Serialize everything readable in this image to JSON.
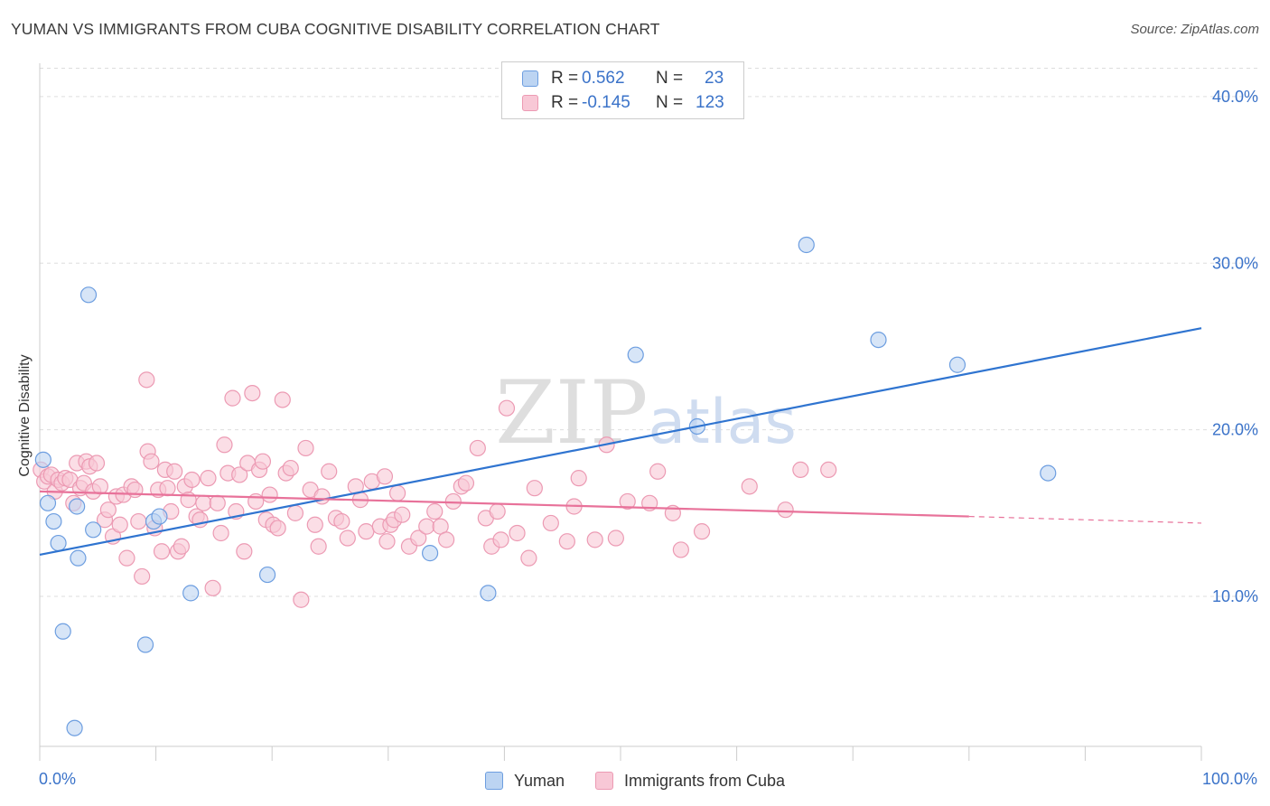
{
  "title": "YUMAN VS IMMIGRANTS FROM CUBA COGNITIVE DISABILITY CORRELATION CHART",
  "source": "Source: ZipAtlas.com",
  "watermark": "ZIPatlas",
  "colors": {
    "blue_fill": "#bcd4f2",
    "blue_stroke": "#6d9ee0",
    "blue_line": "#2f74d0",
    "pink_fill": "#f8c8d6",
    "pink_stroke": "#ec9ab3",
    "pink_line": "#e8729a",
    "axis_text": "#3b73c9",
    "grid": "#dddddd"
  },
  "stats": {
    "rows": [
      {
        "r_label": "R =",
        "r_value": "0.562",
        "n_label": "N =",
        "n_value": "23"
      },
      {
        "r_label": "R =",
        "r_value": "-0.145",
        "n_label": "N =",
        "n_value": "123"
      }
    ]
  },
  "legend": {
    "items": [
      "Yuman",
      "Immigrants from Cuba"
    ]
  },
  "x_axis": {
    "min_label": "0.0%",
    "max_label": "100.0%"
  },
  "chart_data": {
    "type": "scatter",
    "title": "YUMAN VS IMMIGRANTS FROM CUBA COGNITIVE DISABILITY CORRELATION CHART",
    "xlabel": "",
    "ylabel": "Cognitive Disability",
    "xlim": [
      0,
      100
    ],
    "ylim": [
      1,
      42
    ],
    "y_ticks": [
      10,
      20,
      30,
      40
    ],
    "y_tick_labels": [
      "10.0%",
      "20.0%",
      "30.0%",
      "40.0%"
    ],
    "grid": true,
    "legend_position": "bottom-center",
    "series": [
      {
        "name": "Yuman",
        "color": "blue",
        "points": [
          [
            0.3,
            18.2
          ],
          [
            0.7,
            15.6
          ],
          [
            1.2,
            14.5
          ],
          [
            1.6,
            13.2
          ],
          [
            2.0,
            7.9
          ],
          [
            3.0,
            2.1
          ],
          [
            3.2,
            15.4
          ],
          [
            3.3,
            12.3
          ],
          [
            4.2,
            28.1
          ],
          [
            4.6,
            14.0
          ],
          [
            9.1,
            7.1
          ],
          [
            9.8,
            14.5
          ],
          [
            10.3,
            14.8
          ],
          [
            13.0,
            10.2
          ],
          [
            19.6,
            11.3
          ],
          [
            33.6,
            12.6
          ],
          [
            38.6,
            10.2
          ],
          [
            51.3,
            24.5
          ],
          [
            56.6,
            20.2
          ],
          [
            66.0,
            31.1
          ],
          [
            72.2,
            25.4
          ],
          [
            79.0,
            23.9
          ],
          [
            86.8,
            17.4
          ]
        ],
        "trend": {
          "x": [
            0,
            100
          ],
          "y": [
            12.5,
            26.1
          ]
        }
      },
      {
        "name": "Immigrants from Cuba",
        "color": "pink",
        "points": [
          [
            0.1,
            17.6
          ],
          [
            0.4,
            16.9
          ],
          [
            0.7,
            17.2
          ],
          [
            1.0,
            17.3
          ],
          [
            1.3,
            16.3
          ],
          [
            1.6,
            17.0
          ],
          [
            1.9,
            16.8
          ],
          [
            2.2,
            17.1
          ],
          [
            2.6,
            17.0
          ],
          [
            2.9,
            15.6
          ],
          [
            3.2,
            18.0
          ],
          [
            3.5,
            16.5
          ],
          [
            3.8,
            16.8
          ],
          [
            4.0,
            18.1
          ],
          [
            4.3,
            17.8
          ],
          [
            4.6,
            16.3
          ],
          [
            4.9,
            18.0
          ],
          [
            5.2,
            16.6
          ],
          [
            5.6,
            14.6
          ],
          [
            5.9,
            15.2
          ],
          [
            6.3,
            13.6
          ],
          [
            6.6,
            16.0
          ],
          [
            6.9,
            14.3
          ],
          [
            7.2,
            16.1
          ],
          [
            7.5,
            12.3
          ],
          [
            7.9,
            16.6
          ],
          [
            8.2,
            16.4
          ],
          [
            8.5,
            14.5
          ],
          [
            8.8,
            11.2
          ],
          [
            9.2,
            23.0
          ],
          [
            9.3,
            18.7
          ],
          [
            9.6,
            18.1
          ],
          [
            9.9,
            14.1
          ],
          [
            10.2,
            16.4
          ],
          [
            10.5,
            12.7
          ],
          [
            10.8,
            17.6
          ],
          [
            11.0,
            16.5
          ],
          [
            11.3,
            15.1
          ],
          [
            11.6,
            17.5
          ],
          [
            11.9,
            12.7
          ],
          [
            12.2,
            13.0
          ],
          [
            12.5,
            16.6
          ],
          [
            12.8,
            15.8
          ],
          [
            13.1,
            17.0
          ],
          [
            13.5,
            14.8
          ],
          [
            13.8,
            14.6
          ],
          [
            14.1,
            15.6
          ],
          [
            14.5,
            17.1
          ],
          [
            14.9,
            10.5
          ],
          [
            15.3,
            15.6
          ],
          [
            15.6,
            13.8
          ],
          [
            15.9,
            19.1
          ],
          [
            16.2,
            17.4
          ],
          [
            16.6,
            21.9
          ],
          [
            16.9,
            15.1
          ],
          [
            17.2,
            17.3
          ],
          [
            17.6,
            12.7
          ],
          [
            17.9,
            18.0
          ],
          [
            18.3,
            22.2
          ],
          [
            18.6,
            15.7
          ],
          [
            18.9,
            17.6
          ],
          [
            19.2,
            18.1
          ],
          [
            19.5,
            14.6
          ],
          [
            19.8,
            16.1
          ],
          [
            20.1,
            14.3
          ],
          [
            20.5,
            14.1
          ],
          [
            20.9,
            21.8
          ],
          [
            21.2,
            17.4
          ],
          [
            21.6,
            17.7
          ],
          [
            22.0,
            15.0
          ],
          [
            22.5,
            9.8
          ],
          [
            22.9,
            18.9
          ],
          [
            23.3,
            16.4
          ],
          [
            23.7,
            14.3
          ],
          [
            24.0,
            13.0
          ],
          [
            24.3,
            16.0
          ],
          [
            24.9,
            17.5
          ],
          [
            25.5,
            14.7
          ],
          [
            26.0,
            14.5
          ],
          [
            26.5,
            13.5
          ],
          [
            27.2,
            16.6
          ],
          [
            27.6,
            15.8
          ],
          [
            28.1,
            13.9
          ],
          [
            28.6,
            16.9
          ],
          [
            29.3,
            14.2
          ],
          [
            29.7,
            17.2
          ],
          [
            29.9,
            13.3
          ],
          [
            30.2,
            14.3
          ],
          [
            30.5,
            14.6
          ],
          [
            30.8,
            16.2
          ],
          [
            31.2,
            14.9
          ],
          [
            31.8,
            13.0
          ],
          [
            32.6,
            13.5
          ],
          [
            33.3,
            14.2
          ],
          [
            34.0,
            15.1
          ],
          [
            34.5,
            14.2
          ],
          [
            35.0,
            13.4
          ],
          [
            35.6,
            15.7
          ],
          [
            36.3,
            16.6
          ],
          [
            36.7,
            16.8
          ],
          [
            37.7,
            18.9
          ],
          [
            38.4,
            14.7
          ],
          [
            38.9,
            13.0
          ],
          [
            39.4,
            15.1
          ],
          [
            39.7,
            13.4
          ],
          [
            40.2,
            21.3
          ],
          [
            41.1,
            13.8
          ],
          [
            42.1,
            12.3
          ],
          [
            42.6,
            16.5
          ],
          [
            44.0,
            14.4
          ],
          [
            45.4,
            13.3
          ],
          [
            46.0,
            15.4
          ],
          [
            46.4,
            17.1
          ],
          [
            47.8,
            13.4
          ],
          [
            48.8,
            19.1
          ],
          [
            49.6,
            13.5
          ],
          [
            50.6,
            15.7
          ],
          [
            52.5,
            15.6
          ],
          [
            53.2,
            17.5
          ],
          [
            54.5,
            15.0
          ],
          [
            55.2,
            12.8
          ],
          [
            57.0,
            13.9
          ],
          [
            61.1,
            16.6
          ],
          [
            64.2,
            15.2
          ],
          [
            65.5,
            17.6
          ],
          [
            67.9,
            17.6
          ]
        ],
        "trend": {
          "x": [
            0,
            80
          ],
          "y": [
            16.3,
            14.8
          ]
        },
        "trend_dashed": {
          "x": [
            80,
            100
          ],
          "y": [
            14.8,
            14.4
          ]
        }
      }
    ]
  }
}
